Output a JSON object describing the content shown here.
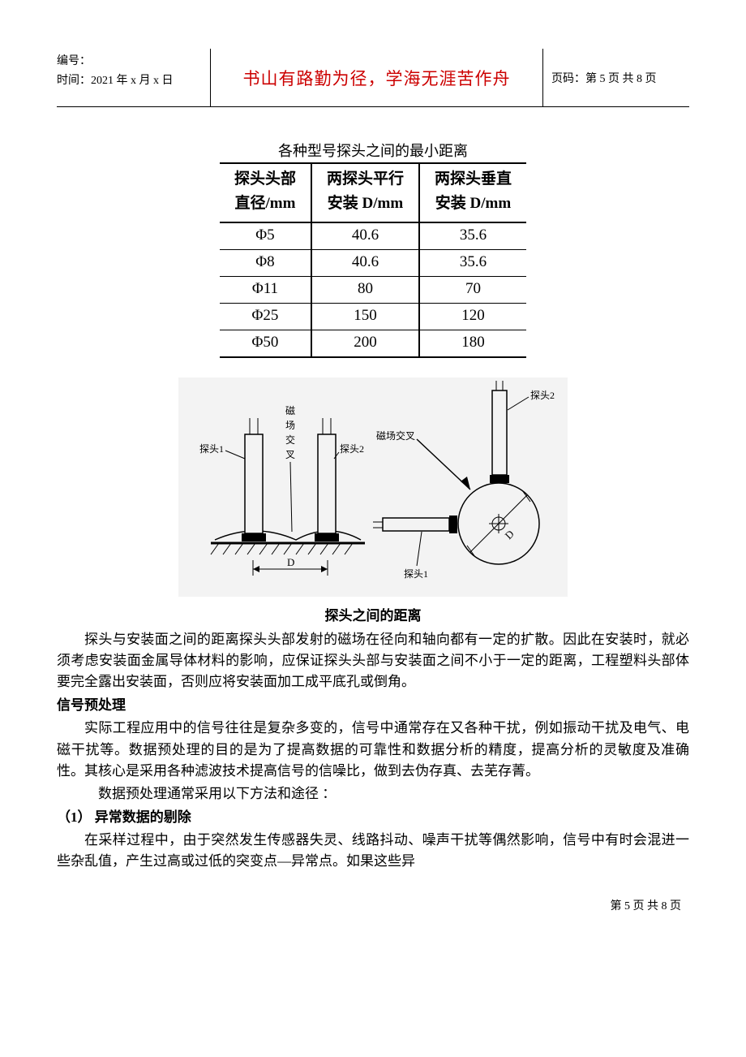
{
  "header": {
    "seq_label": "编号：",
    "time_label": "时间：2021 年 x 月 x 日",
    "motto": "书山有路勤为径，学海无涯苦作舟",
    "motto_color": "#cc0000",
    "page_label": "页码：第 5 页  共 8 页"
  },
  "table": {
    "caption": "各种型号探头之间的最小距离",
    "columns_line1": [
      "探头头部",
      "两探头平行",
      "两探头垂直"
    ],
    "columns_line2": [
      "直径/mm",
      "安装 D/mm",
      "安装 D/mm"
    ],
    "rows": [
      [
        "Φ5",
        "40.6",
        "35.6"
      ],
      [
        "Φ8",
        "40.6",
        "35.6"
      ],
      [
        "Φ11",
        "80",
        "70"
      ],
      [
        "Φ25",
        "150",
        "120"
      ],
      [
        "Φ50",
        "200",
        "180"
      ]
    ],
    "border_color": "#000000",
    "font_size": 19
  },
  "diagram": {
    "type": "infographic",
    "caption": "探头之间的距离",
    "background_color": "#f3f3f3",
    "stroke_color": "#000000",
    "fill_black": "#000000",
    "labels": {
      "probe1_left": "探头1",
      "probe2_mid": "探头2",
      "mag_cross_vert": "磁场交叉",
      "mag_interf": "磁场交叉",
      "probe2_top": "探头2",
      "probe1_bottom": "探头1",
      "dim_D_left": "D",
      "dim_D_right": "D"
    }
  },
  "paragraphs": {
    "dist_para": "探头与安装面之间的距离探头头部发射的磁场在径向和轴向都有一定的扩散。因此在安装时，就必须考虑安装面金属导体材料的影响，应保证探头头部与安装面之间不小于一定的距离，工程塑料头部体要完全露出安装面，否则应将安装面加工成平底孔或倒角。",
    "sig_head": "信号预处理",
    "sig_p1": "实际工程应用中的信号往往是复杂多变的，信号中通常存在又各种干扰，例如振动干扰及电气、电磁干扰等。数据预处理的目的是为了提高数据的可靠性和数据分析的精度，提高分析的灵敏度及准确性。其核心是采用各种滤波技术提高信号的信噪比，做到去伪存真、去芜存菁。",
    "sig_p2": "数据预处理通常采用以下方法和途径 ：",
    "item1_head": "（1）  异常数据的剔除",
    "item1_body": "在采样过程中，由于突然发生传感器失灵、线路抖动、噪声干扰等偶然影响，信号中有时会混进一些杂乱值，产生过高或过低的突变点—异常点。如果这些异"
  },
  "footer": {
    "text": "第 5 页 共 8 页"
  }
}
